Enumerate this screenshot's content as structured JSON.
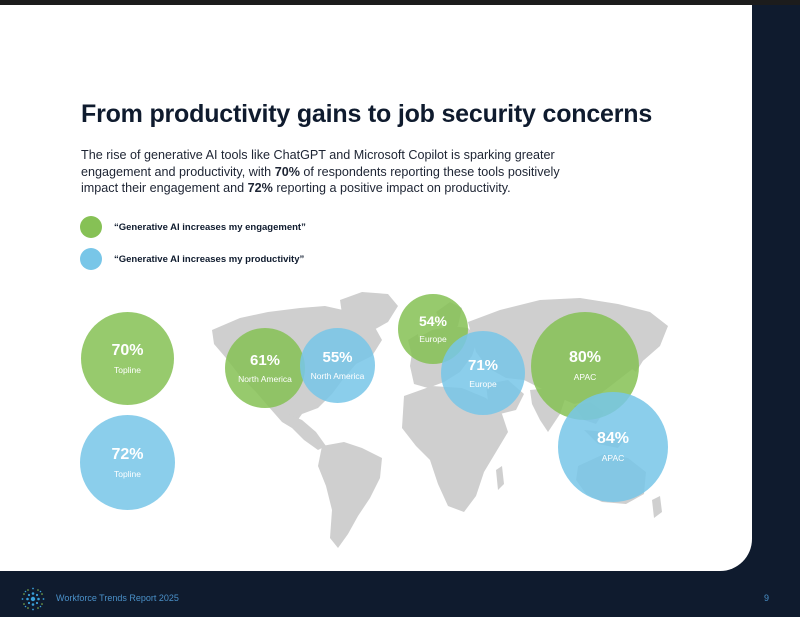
{
  "title": "From productivity gains to job security concerns",
  "intro": {
    "part1": "The rise of generative AI tools like ChatGPT and Microsoft Copilot is sparking greater engagement and productivity, with ",
    "engagement_pct": "70%",
    "part2": " of respondents reporting these tools positively impact their engagement and ",
    "productivity_pct": "72%",
    "part3": " reporting a positive impact on productivity."
  },
  "legend": [
    {
      "label": "“Generative AI increases my engagement”",
      "color": "#86c155"
    },
    {
      "label": "“Generative AI increases my productivity”",
      "color": "#78c6e8"
    }
  ],
  "bubbles": {
    "topline_engagement": {
      "pct": "70%",
      "label": "Topline"
    },
    "topline_productivity": {
      "pct": "72%",
      "label": "Topline"
    },
    "na_engagement": {
      "pct": "61%",
      "label": "North America"
    },
    "na_productivity": {
      "pct": "55%",
      "label": "North America"
    },
    "europe_engagement": {
      "pct": "54%",
      "label": "Europe"
    },
    "europe_productivity": {
      "pct": "71%",
      "label": "Europe"
    },
    "apac_engagement": {
      "pct": "80%",
      "label": "APAC"
    },
    "apac_productivity": {
      "pct": "84%",
      "label": "APAC"
    }
  },
  "footer": {
    "title": "Workforce Trends Report 2025",
    "page": "9"
  },
  "colors": {
    "engagement": "#86c155",
    "productivity": "#78c6e8",
    "navy": "#0f1b2e"
  }
}
